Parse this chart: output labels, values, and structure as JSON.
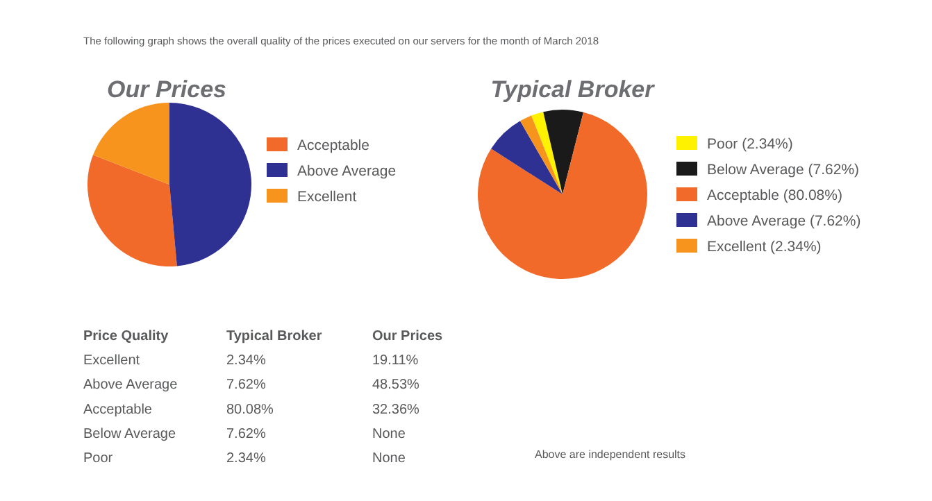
{
  "chart_data": [
    {
      "type": "pie",
      "title": "Our Prices",
      "annotations": [
        "The following graph shows the overall quality of the prices executed on our servers for the month of March 2018"
      ],
      "categories": [
        "Acceptable",
        "Above Average",
        "Excellent"
      ],
      "values": [
        32.36,
        48.53,
        19.11
      ],
      "colors": [
        "#f26a2a",
        "#2e3192",
        "#f7941d"
      ],
      "legend": "right"
    },
    {
      "type": "pie",
      "title": "Typical Broker",
      "categories": [
        "Poor (2.34%)",
        "Below Average (7.62%)",
        "Acceptable (80.08%)",
        "Above Average (7.62%)",
        "Excellent (2.34%)"
      ],
      "values": [
        2.34,
        7.62,
        80.08,
        7.62,
        2.34
      ],
      "colors": [
        "#fff200",
        "#1a1a1a",
        "#f26a2a",
        "#2e3192",
        "#f7941d"
      ],
      "legend": "right"
    },
    {
      "type": "other",
      "annotations": [
        "Price Quality",
        "Typical Broker",
        "Our Prices",
        "Excellent",
        "2.34%",
        "19.11%",
        "Above Average",
        "7.62%",
        "48.53%",
        "Acceptable",
        "80.08%",
        "32.36%",
        "Below Average",
        "7.62%",
        "None",
        "Poor",
        "2.34%",
        "None",
        "Above are independent results"
      ]
    }
  ]
}
